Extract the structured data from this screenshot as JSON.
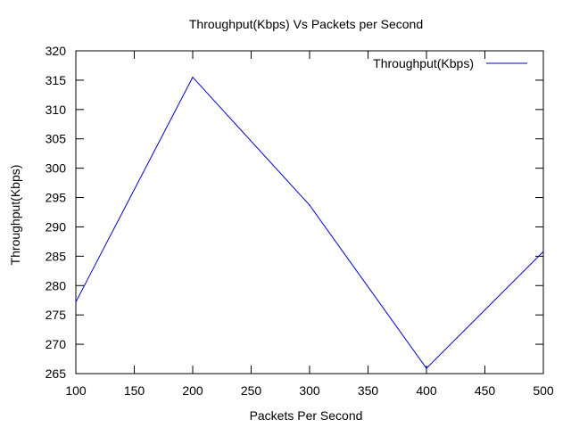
{
  "chart_data": {
    "type": "line",
    "title": "Throughput(Kbps) Vs Packets per Second",
    "xlabel": "Packets Per Second",
    "ylabel": "Throughput(Kbps)",
    "xlim": [
      100,
      500
    ],
    "ylim": [
      265,
      320
    ],
    "x_ticks": [
      100,
      150,
      200,
      250,
      300,
      350,
      400,
      450,
      500
    ],
    "y_ticks": [
      265,
      270,
      275,
      280,
      285,
      290,
      295,
      300,
      305,
      310,
      315,
      320
    ],
    "legend_position": "top-right",
    "series": [
      {
        "name": "Throughput(Kbps)",
        "color": "#0000cc",
        "x": [
          100,
          200,
          300,
          400,
          500
        ],
        "y": [
          277.2,
          315.5,
          293.7,
          265.9,
          285.8
        ]
      }
    ]
  }
}
